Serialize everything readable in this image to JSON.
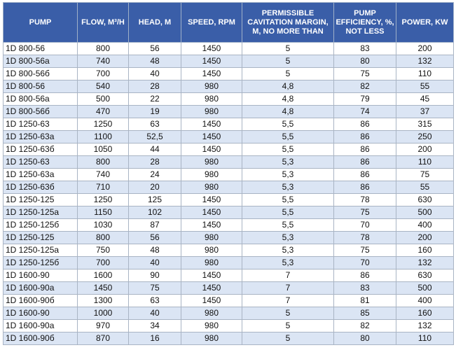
{
  "table": {
    "header": [
      "PUMP",
      "FLOW, M³/H",
      "HEAD, M",
      "SPEED, RPM",
      "PERMISSIBLE CAVITATION MARGIN, M, NO MORE THAN",
      "PUMP EFFICIENCY, %, NOT LESS",
      "POWER, KW"
    ],
    "rows": [
      [
        "1D 800-56",
        "800",
        "56",
        "1450",
        "5",
        "83",
        "200"
      ],
      [
        "1D 800-56а",
        "740",
        "48",
        "1450",
        "5",
        "80",
        "132"
      ],
      [
        "1D 800-56б",
        "700",
        "40",
        "1450",
        "5",
        "75",
        "110"
      ],
      [
        "1D 800-56",
        "540",
        "28",
        "980",
        "4,8",
        "82",
        "55"
      ],
      [
        "1D 800-56а",
        "500",
        "22",
        "980",
        "4,8",
        "79",
        "45"
      ],
      [
        "1D 800-56б",
        "470",
        "19",
        "980",
        "4,8",
        "74",
        "37"
      ],
      [
        "1D 1250-63",
        "1250",
        "63",
        "1450",
        "5,5",
        "86",
        "315"
      ],
      [
        "1D 1250-63а",
        "1100",
        "52,5",
        "1450",
        "5,5",
        "86",
        "250"
      ],
      [
        "1D 1250-63б",
        "1050",
        "44",
        "1450",
        "5,5",
        "86",
        "200"
      ],
      [
        "1D 1250-63",
        "800",
        "28",
        "980",
        "5,3",
        "86",
        "110"
      ],
      [
        "1D 1250-63а",
        "740",
        "24",
        "980",
        "5,3",
        "86",
        "75"
      ],
      [
        "1D 1250-63б",
        "710",
        "20",
        "980",
        "5,3",
        "86",
        "55"
      ],
      [
        "1D 1250-125",
        "1250",
        "125",
        "1450",
        "5,5",
        "78",
        "630"
      ],
      [
        "1D 1250-125а",
        "1150",
        "102",
        "1450",
        "5,5",
        "75",
        "500"
      ],
      [
        "1D 1250-125б",
        "1030",
        "87",
        "1450",
        "5,5",
        "70",
        "400"
      ],
      [
        "1D 1250-125",
        "800",
        "56",
        "980",
        "5,3",
        "78",
        "200"
      ],
      [
        "1D 1250-125а",
        "750",
        "48",
        "980",
        "5,3",
        "75",
        "160"
      ],
      [
        "1D 1250-125б",
        "700",
        "40",
        "980",
        "5,3",
        "70",
        "132"
      ],
      [
        "1D 1600-90",
        "1600",
        "90",
        "1450",
        "7",
        "86",
        "630"
      ],
      [
        "1D 1600-90а",
        "1450",
        "75",
        "1450",
        "7",
        "83",
        "500"
      ],
      [
        "1D 1600-90б",
        "1300",
        "63",
        "1450",
        "7",
        "81",
        "400"
      ],
      [
        "1D 1600-90",
        "1000",
        "40",
        "980",
        "5",
        "85",
        "160"
      ],
      [
        "1D 1600-90а",
        "970",
        "34",
        "980",
        "5",
        "82",
        "132"
      ],
      [
        "1D 1600-90б",
        "870",
        "16",
        "980",
        "5",
        "80",
        "110"
      ]
    ]
  }
}
